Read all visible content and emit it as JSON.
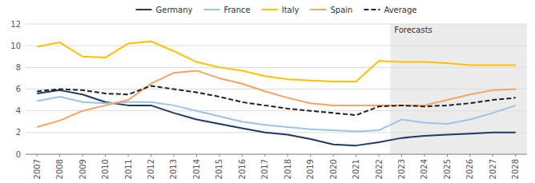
{
  "chart_data": {
    "type": "line",
    "x": [
      2007,
      2008,
      2009,
      2010,
      2011,
      2012,
      2013,
      2014,
      2015,
      2016,
      2017,
      2018,
      2019,
      2020,
      2021,
      2022,
      2023,
      2024,
      2025,
      2026,
      2027,
      2028
    ],
    "series": [
      {
        "name": "Germany",
        "color": "#1f3864",
        "values": [
          5.6,
          5.9,
          5.5,
          4.8,
          4.5,
          4.5,
          3.8,
          3.2,
          2.8,
          2.4,
          2.0,
          1.8,
          1.4,
          0.9,
          0.8,
          1.1,
          1.5,
          1.7,
          1.8,
          1.9,
          2.0,
          2.0
        ]
      },
      {
        "name": "France",
        "color": "#9dc3e6",
        "values": [
          4.9,
          5.3,
          4.8,
          4.7,
          4.8,
          4.8,
          4.5,
          4.0,
          3.5,
          3.0,
          2.7,
          2.5,
          2.3,
          2.2,
          2.1,
          2.2,
          3.2,
          2.9,
          2.8,
          3.2,
          3.8,
          4.5
        ]
      },
      {
        "name": "Italy",
        "color": "#ffc000",
        "values": [
          9.9,
          10.3,
          9.0,
          8.9,
          10.2,
          10.4,
          9.5,
          8.5,
          8.0,
          7.7,
          7.2,
          6.9,
          6.8,
          6.7,
          6.7,
          8.6,
          8.5,
          8.5,
          8.4,
          8.2,
          8.2,
          8.2
        ]
      },
      {
        "name": "Spain",
        "color": "#f4a460",
        "values": [
          2.5,
          3.1,
          4.0,
          4.5,
          5.0,
          6.5,
          7.5,
          7.7,
          7.0,
          6.5,
          5.8,
          5.2,
          4.7,
          4.5,
          4.5,
          4.5,
          4.5,
          4.5,
          5.0,
          5.5,
          5.9,
          6.0
        ]
      },
      {
        "name": "Average",
        "color": "#222222",
        "line_style": "dashed",
        "values": [
          5.8,
          6.0,
          5.9,
          5.6,
          5.5,
          6.3,
          6.0,
          5.7,
          5.3,
          4.8,
          4.5,
          4.2,
          4.0,
          3.8,
          3.6,
          4.4,
          4.5,
          4.4,
          4.5,
          4.7,
          5.0,
          5.2
        ]
      }
    ],
    "xlim": [
      2006.5,
      2028.5
    ],
    "xticks": [
      2007,
      2008,
      2009,
      2010,
      2011,
      2012,
      2013,
      2014,
      2015,
      2016,
      2017,
      2018,
      2019,
      2020,
      2021,
      2022,
      2023,
      2024,
      2025,
      2026,
      2027,
      2028
    ],
    "ylim": [
      0,
      12
    ],
    "yticks": [
      0,
      2,
      4,
      6,
      8,
      10,
      12
    ],
    "grid": true,
    "legend": "top",
    "annotations": [
      {
        "text": "Forecasts",
        "x_start": 2022.5,
        "x_end": 2028.5
      }
    ]
  }
}
